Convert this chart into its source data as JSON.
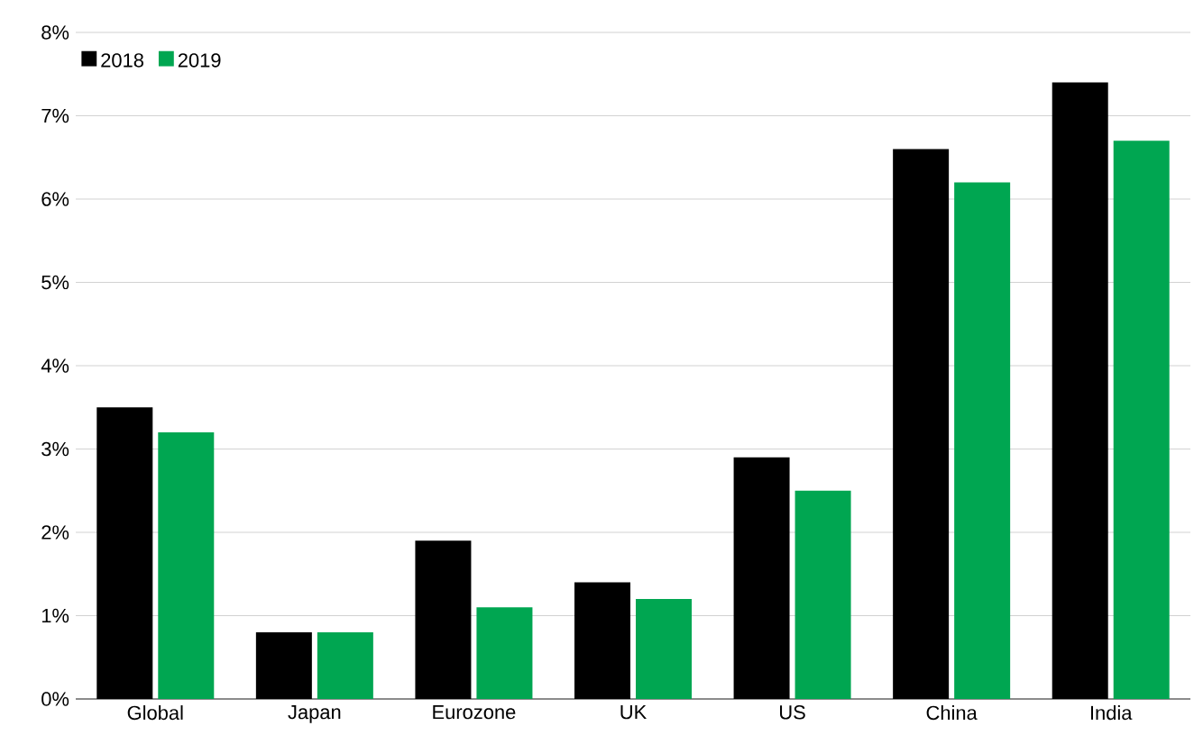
{
  "chart_data": {
    "type": "bar",
    "categories": [
      "Global",
      "Japan",
      "Eurozone",
      "UK",
      "US",
      "China",
      "India"
    ],
    "series": [
      {
        "name": "2018",
        "color": "#000000",
        "values": [
          3.5,
          0.8,
          1.9,
          1.4,
          2.9,
          6.6,
          7.4
        ]
      },
      {
        "name": "2019",
        "color": "#00a651",
        "values": [
          3.2,
          0.8,
          1.1,
          1.2,
          2.5,
          6.2,
          6.7
        ]
      }
    ],
    "ylim": [
      0,
      8
    ],
    "yticks": [
      {
        "value": 0,
        "label": "0%"
      },
      {
        "value": 1,
        "label": "1%"
      },
      {
        "value": 2,
        "label": "2%"
      },
      {
        "value": 3,
        "label": "3%"
      },
      {
        "value": 4,
        "label": "4%"
      },
      {
        "value": 5,
        "label": "5%"
      },
      {
        "value": 6,
        "label": "6%"
      },
      {
        "value": 7,
        "label": "7%"
      },
      {
        "value": 8,
        "label": "8%"
      }
    ],
    "grid": "y",
    "legend": "top left"
  }
}
